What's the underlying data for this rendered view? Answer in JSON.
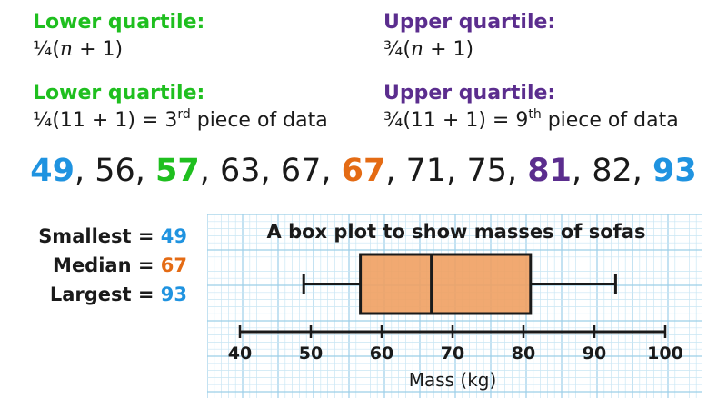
{
  "lower_quartile": {
    "heading": "Lower quartile:",
    "formula_prefix": "¼(",
    "formula_var": "n",
    "formula_suffix": " + 1)",
    "calc_before": "¼(11 + 1) = 3",
    "calc_sup": "rd",
    "calc_after": " piece of data"
  },
  "upper_quartile": {
    "heading": "Upper quartile:",
    "formula_prefix": "¾(",
    "formula_var": "n",
    "formula_suffix": " + 1)",
    "calc_before": "¾(11 + 1) = 9",
    "calc_sup": "th",
    "calc_after": " piece of data"
  },
  "data_values": [
    {
      "text": "49",
      "highlight": "blue"
    },
    {
      "text": "56",
      "highlight": ""
    },
    {
      "text": "57",
      "highlight": "green"
    },
    {
      "text": "63",
      "highlight": ""
    },
    {
      "text": "67",
      "highlight": ""
    },
    {
      "text": "67",
      "highlight": "orange"
    },
    {
      "text": "71",
      "highlight": ""
    },
    {
      "text": "75",
      "highlight": ""
    },
    {
      "text": "81",
      "highlight": "purple"
    },
    {
      "text": "82",
      "highlight": ""
    },
    {
      "text": "93",
      "highlight": "blue"
    }
  ],
  "data_separator": ", ",
  "stats": {
    "smallest_label": "Smallest = ",
    "smallest_value": "49",
    "median_label": "Median = ",
    "median_value": "67",
    "largest_label": "Largest = ",
    "largest_value": "93"
  },
  "colors": {
    "green": "#1fbf1f",
    "purple": "#5b2d8e",
    "blue": "#1f93e0",
    "orange": "#e46b14",
    "box_fill": "#f0a062",
    "grid_minor": "#c9e6f4",
    "grid_major": "#9ccfe8"
  },
  "chart_data": {
    "type": "boxplot",
    "title": "A box plot to show masses of sofas",
    "xlabel": "Mass (kg)",
    "xlim": [
      40,
      100
    ],
    "ticks": [
      40,
      50,
      60,
      70,
      80,
      90,
      100
    ],
    "tick_labels": [
      "40",
      "50",
      "60",
      "70",
      "80",
      "90",
      "100"
    ],
    "min": 49,
    "q1": 57,
    "median": 67,
    "q3": 81,
    "max": 93,
    "grid": true
  }
}
